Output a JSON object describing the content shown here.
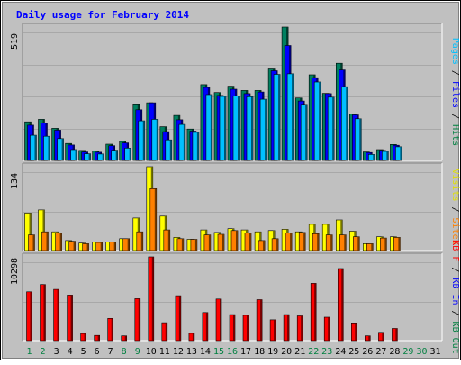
{
  "chart_data": [
    {
      "type": "bar",
      "title": "Daily usage for February 2014",
      "ymax_label": "519",
      "side_label_parts": [
        {
          "text": "Pages",
          "color": "#00c0ff"
        },
        {
          "text": " / ",
          "color": "#000000"
        },
        {
          "text": "Files",
          "color": "#0000ff"
        },
        {
          "text": " / ",
          "color": "#000000"
        },
        {
          "text": "Hits",
          "color": "#008040"
        }
      ],
      "ylim": [
        0,
        519
      ],
      "categories": [
        "1",
        "2",
        "3",
        "4",
        "5",
        "6",
        "7",
        "8",
        "9",
        "10",
        "11",
        "12",
        "13",
        "14",
        "15",
        "16",
        "17",
        "18",
        "19",
        "20",
        "21",
        "22",
        "23",
        "24",
        "25",
        "26",
        "27",
        "28",
        "29",
        "30",
        "31"
      ],
      "series": [
        {
          "name": "Hits",
          "color": "#008060",
          "values": [
            150,
            160,
            125,
            66,
            39,
            36,
            63,
            74,
            220,
            224,
            131,
            175,
            122,
            295,
            264,
            289,
            272,
            272,
            356,
            519,
            243,
            333,
            261,
            378,
            180,
            33,
            42,
            62,
            0,
            0,
            0
          ]
        },
        {
          "name": "Files",
          "color": "#0000ff",
          "values": [
            137,
            145,
            118,
            60,
            33,
            32,
            57,
            68,
            197,
            224,
            112,
            158,
            114,
            284,
            253,
            277,
            260,
            266,
            349,
            447,
            231,
            322,
            260,
            352,
            177,
            31,
            39,
            59,
            0,
            0,
            0
          ]
        },
        {
          "name": "Pages",
          "color": "#00c0ff",
          "values": [
            98,
            94,
            85,
            42,
            26,
            25,
            40,
            48,
            154,
            160,
            80,
            140,
            109,
            256,
            249,
            250,
            248,
            238,
            335,
            337,
            218,
            305,
            246,
            287,
            162,
            23,
            35,
            53,
            0,
            0,
            0
          ]
        }
      ]
    },
    {
      "type": "bar",
      "ymax_label": "134",
      "side_label_parts": [
        {
          "text": "Visits",
          "color": "#e0e000"
        },
        {
          "text": " / ",
          "color": "#000000"
        },
        {
          "text": "Sites",
          "color": "#ff8000"
        }
      ],
      "ylim": [
        0,
        134
      ],
      "categories": [
        "1",
        "2",
        "3",
        "4",
        "5",
        "6",
        "7",
        "8",
        "9",
        "10",
        "11",
        "12",
        "13",
        "14",
        "15",
        "16",
        "17",
        "18",
        "19",
        "20",
        "21",
        "22",
        "23",
        "24",
        "25",
        "26",
        "27",
        "28",
        "29",
        "30",
        "31"
      ],
      "series": [
        {
          "name": "Visits",
          "color": "#ffff00",
          "values": [
            60,
            65,
            30,
            16,
            12,
            14,
            14,
            19,
            52,
            134,
            55,
            21,
            18,
            33,
            29,
            35,
            33,
            30,
            32,
            34,
            30,
            42,
            42,
            49,
            31,
            11,
            22,
            22,
            0,
            0,
            0
          ]
        },
        {
          "name": "Sites",
          "color": "#ff8000",
          "values": [
            25,
            30,
            28,
            15,
            11,
            13,
            14,
            19,
            30,
            99,
            33,
            19,
            18,
            25,
            26,
            32,
            28,
            16,
            19,
            28,
            29,
            27,
            25,
            25,
            22,
            11,
            20,
            21,
            0,
            0,
            0
          ]
        }
      ]
    },
    {
      "type": "bar",
      "ymax_label": "10298",
      "side_label_parts": [
        {
          "text": "KB F",
          "color": "#ff0000"
        },
        {
          "text": " / ",
          "color": "#000000"
        },
        {
          "text": "KB In",
          "color": "#0000ff"
        },
        {
          "text": " / ",
          "color": "#000000"
        },
        {
          "text": "KB Out",
          "color": "#008040"
        }
      ],
      "ylim": [
        0,
        10298
      ],
      "categories": [
        "1",
        "2",
        "3",
        "4",
        "5",
        "6",
        "7",
        "8",
        "9",
        "10",
        "11",
        "12",
        "13",
        "14",
        "15",
        "16",
        "17",
        "18",
        "19",
        "20",
        "21",
        "22",
        "23",
        "24",
        "25",
        "26",
        "27",
        "28",
        "29",
        "30",
        "31"
      ],
      "x_label_colors": [
        "#008040",
        "#008040",
        "#000000",
        "#000000",
        "#000000",
        "#000000",
        "#000000",
        "#008040",
        "#008040",
        "#000000",
        "#000000",
        "#000000",
        "#000000",
        "#000000",
        "#008040",
        "#008040",
        "#000000",
        "#000000",
        "#000000",
        "#000000",
        "#000000",
        "#008040",
        "#008040",
        "#000000",
        "#000000",
        "#000000",
        "#000000",
        "#000000",
        "#008040",
        "#008040",
        "#000000"
      ],
      "series": [
        {
          "name": "KB F",
          "color": "#ff0000",
          "values": [
            6000,
            6900,
            6300,
            5600,
            880,
            640,
            2740,
            590,
            5160,
            10298,
            2200,
            5520,
            900,
            3460,
            5120,
            3200,
            3110,
            5040,
            2560,
            3200,
            3040,
            7040,
            2880,
            8860,
            2180,
            590,
            1020,
            1500,
            0,
            0,
            0
          ]
        }
      ]
    }
  ]
}
